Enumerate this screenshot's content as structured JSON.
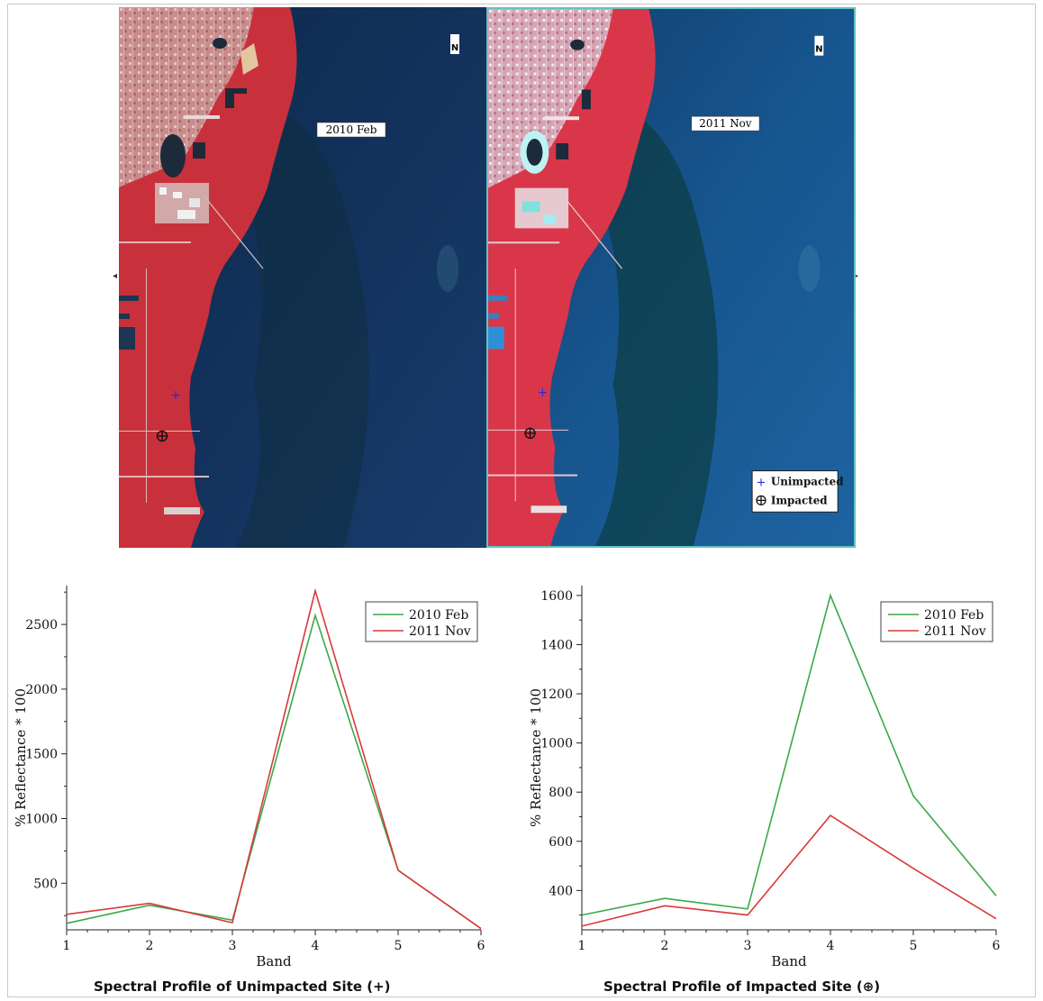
{
  "maps": [
    {
      "date_label": "2010 Feb",
      "north_label": "N"
    },
    {
      "date_label": "2011 Nov",
      "north_label": "N"
    }
  ],
  "legend": {
    "unimpacted_label": "Unimpacted",
    "impacted_label": "Impacted",
    "unimpacted_symbol": "+",
    "impacted_symbol": "⊕"
  },
  "colors": {
    "series_2010": "#3aa84a",
    "series_2011": "#d9393a",
    "map_border_selected": "#64c2c2"
  },
  "chart_data": [
    {
      "type": "line",
      "title": "Spectral Profile of Unimpacted Site (+)",
      "xlabel": "Band",
      "ylabel": "% Reflectance * 100",
      "x": [
        1,
        2,
        3,
        4,
        5,
        6
      ],
      "xlim": [
        1,
        6
      ],
      "ylim": [
        140,
        2800
      ],
      "yticks": [
        500,
        1000,
        1500,
        2000,
        2500
      ],
      "legend_position": "top-right",
      "grid": false,
      "series": [
        {
          "name": "2010 Feb",
          "values": [
            190,
            330,
            215,
            2570,
            600,
            150
          ]
        },
        {
          "name": "2011 Nov",
          "values": [
            260,
            345,
            195,
            2760,
            600,
            150
          ]
        }
      ]
    },
    {
      "type": "line",
      "title": "Spectral Profile of Impacted Site (⊕)",
      "xlabel": "Band",
      "ylabel": "% Reflectance * 100",
      "x": [
        1,
        2,
        3,
        4,
        5,
        6
      ],
      "xlim": [
        1,
        6
      ],
      "ylim": [
        240,
        1640
      ],
      "yticks": [
        400,
        600,
        800,
        1000,
        1200,
        1400,
        1600
      ],
      "legend_position": "top-right",
      "grid": false,
      "series": [
        {
          "name": "2010 Feb",
          "values": [
            300,
            368,
            325,
            1600,
            785,
            378
          ]
        },
        {
          "name": "2011 Nov",
          "values": [
            255,
            338,
            300,
            705,
            490,
            285
          ]
        }
      ]
    }
  ]
}
